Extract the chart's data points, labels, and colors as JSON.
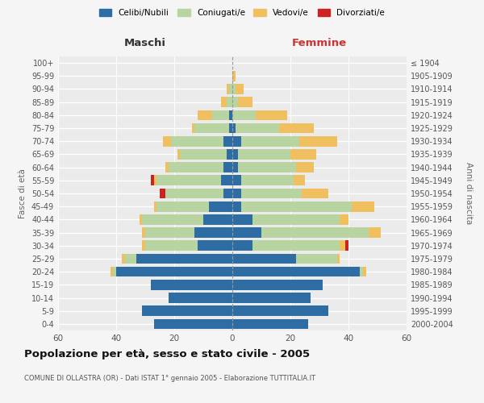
{
  "age_groups": [
    "0-4",
    "5-9",
    "10-14",
    "15-19",
    "20-24",
    "25-29",
    "30-34",
    "35-39",
    "40-44",
    "45-49",
    "50-54",
    "55-59",
    "60-64",
    "65-69",
    "70-74",
    "75-79",
    "80-84",
    "85-89",
    "90-94",
    "95-99",
    "100+"
  ],
  "birth_years": [
    "2000-2004",
    "1995-1999",
    "1990-1994",
    "1985-1989",
    "1980-1984",
    "1975-1979",
    "1970-1974",
    "1965-1969",
    "1960-1964",
    "1955-1959",
    "1950-1954",
    "1945-1949",
    "1940-1944",
    "1935-1939",
    "1930-1934",
    "1925-1929",
    "1920-1924",
    "1915-1919",
    "1910-1914",
    "1905-1909",
    "≤ 1904"
  ],
  "maschi": {
    "celibi": [
      27,
      31,
      22,
      28,
      40,
      33,
      12,
      13,
      10,
      8,
      3,
      4,
      3,
      2,
      3,
      1,
      1,
      0,
      0,
      0,
      0
    ],
    "coniugati": [
      0,
      0,
      0,
      0,
      1,
      4,
      18,
      17,
      21,
      18,
      20,
      22,
      19,
      16,
      18,
      12,
      6,
      2,
      1,
      0,
      0
    ],
    "vedovi": [
      0,
      0,
      0,
      0,
      1,
      1,
      1,
      1,
      1,
      1,
      0,
      1,
      1,
      1,
      3,
      1,
      5,
      2,
      1,
      0,
      0
    ],
    "divorziati": [
      0,
      0,
      0,
      0,
      0,
      0,
      0,
      0,
      0,
      0,
      2,
      1,
      0,
      0,
      0,
      0,
      0,
      0,
      0,
      0,
      0
    ]
  },
  "femmine": {
    "nubili": [
      26,
      33,
      27,
      31,
      44,
      22,
      7,
      10,
      7,
      3,
      3,
      3,
      2,
      2,
      3,
      1,
      0,
      0,
      0,
      0,
      0
    ],
    "coniugate": [
      0,
      0,
      0,
      0,
      1,
      14,
      30,
      37,
      30,
      38,
      21,
      18,
      20,
      18,
      20,
      15,
      8,
      2,
      1,
      0,
      0
    ],
    "vedove": [
      0,
      0,
      0,
      0,
      1,
      1,
      2,
      4,
      3,
      8,
      9,
      4,
      6,
      9,
      13,
      12,
      11,
      5,
      3,
      1,
      0
    ],
    "divorziate": [
      0,
      0,
      0,
      0,
      0,
      0,
      1,
      0,
      0,
      0,
      0,
      0,
      0,
      0,
      0,
      0,
      0,
      0,
      0,
      0,
      0
    ]
  },
  "color_celibi": "#2e6da4",
  "color_coniugati": "#b8d4a0",
  "color_vedovi": "#f0c060",
  "color_divorziati": "#cc2222",
  "bg_color": "#ebebeb",
  "grid_color": "#ffffff",
  "xlim": 60,
  "title": "Popolazione per età, sesso e stato civile - 2005",
  "subtitle": "COMUNE DI OLLASTRA (OR) - Dati ISTAT 1° gennaio 2005 - Elaborazione TUTTITALIA.IT",
  "ylabel": "Fasce di età",
  "ylabel_right": "Anni di nascita",
  "label_maschi": "Maschi",
  "label_femmine": "Femmine",
  "legend_celibi": "Celibi/Nubili",
  "legend_coniugati": "Coniugati/e",
  "legend_vedovi": "Vedovi/e",
  "legend_divorziati": "Divorziati/e"
}
